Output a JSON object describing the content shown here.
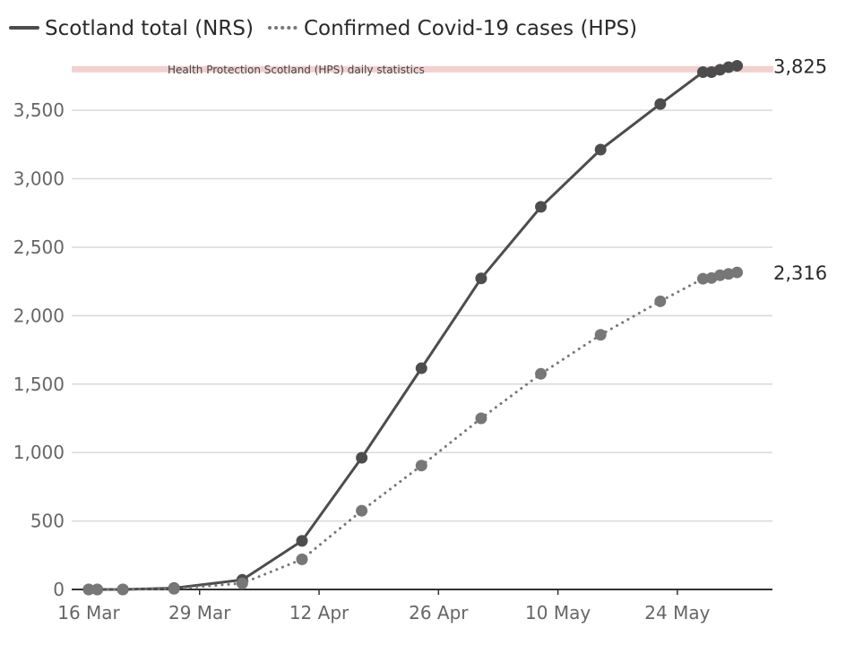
{
  "chart_data": {
    "type": "line",
    "x_ticks": [
      "16 Mar",
      "29 Mar",
      "12 Apr",
      "26 Apr",
      "10 May",
      "24 May"
    ],
    "y_ticks": [
      "0",
      "500",
      "1,000",
      "1,500",
      "2,000",
      "2,500",
      "3,000",
      "3,500"
    ],
    "ylim": [
      0,
      3900
    ],
    "xlim": [
      "2020-03-16",
      "2020-05-31"
    ],
    "grid": true,
    "legend_position": "top-left",
    "series": [
      {
        "name": "Scotland total (NRS)",
        "style": "solid",
        "color": "#4d4d4d",
        "end_label": "3,825",
        "points": [
          {
            "x": "2020-03-16",
            "y": 0
          },
          {
            "x": "2020-03-17",
            "y": 0
          },
          {
            "x": "2020-03-20",
            "y": 0
          },
          {
            "x": "2020-03-26",
            "y": 10
          },
          {
            "x": "2020-04-03",
            "y": 70
          },
          {
            "x": "2020-04-10",
            "y": 355
          },
          {
            "x": "2020-04-17",
            "y": 962
          },
          {
            "x": "2020-04-24",
            "y": 1616
          },
          {
            "x": "2020-05-01",
            "y": 2272
          },
          {
            "x": "2020-05-08",
            "y": 2795
          },
          {
            "x": "2020-05-15",
            "y": 3213
          },
          {
            "x": "2020-05-22",
            "y": 3546
          },
          {
            "x": "2020-05-27",
            "y": 3779
          },
          {
            "x": "2020-05-28",
            "y": 3779
          },
          {
            "x": "2020-05-29",
            "y": 3796
          },
          {
            "x": "2020-05-30",
            "y": 3815
          },
          {
            "x": "2020-05-31",
            "y": 3825
          }
        ]
      },
      {
        "name": "Confirmed Covid-19 cases (HPS)",
        "style": "dotted",
        "color": "#777777",
        "end_label": "2,316",
        "points": [
          {
            "x": "2020-03-16",
            "y": 0
          },
          {
            "x": "2020-03-17",
            "y": 0
          },
          {
            "x": "2020-03-20",
            "y": 0
          },
          {
            "x": "2020-03-26",
            "y": 5
          },
          {
            "x": "2020-04-03",
            "y": 45
          },
          {
            "x": "2020-04-10",
            "y": 220
          },
          {
            "x": "2020-04-17",
            "y": 575
          },
          {
            "x": "2020-04-24",
            "y": 905
          },
          {
            "x": "2020-05-01",
            "y": 1250
          },
          {
            "x": "2020-05-08",
            "y": 1575
          },
          {
            "x": "2020-05-15",
            "y": 1860
          },
          {
            "x": "2020-05-22",
            "y": 2105
          },
          {
            "x": "2020-05-27",
            "y": 2270
          },
          {
            "x": "2020-05-28",
            "y": 2275
          },
          {
            "x": "2020-05-29",
            "y": 2295
          },
          {
            "x": "2020-05-30",
            "y": 2305
          },
          {
            "x": "2020-05-31",
            "y": 2316
          }
        ]
      }
    ],
    "annotation": {
      "text": "Health Protection Scotland (HPS) daily statistics",
      "y": 3800,
      "color": "#f2d0d0"
    }
  }
}
